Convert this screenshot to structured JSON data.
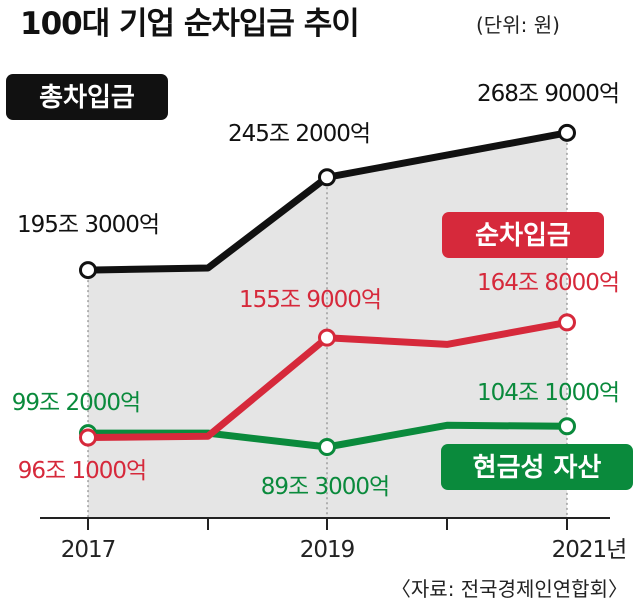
{
  "title": "100대 기업 순차입금 추이",
  "unit": "(단위: 원)",
  "source": "〈자료: 전국경제인연합회〉",
  "chart_data": {
    "type": "line",
    "x": [
      2017,
      2018,
      2019,
      2020,
      2021
    ],
    "x_tick_labels": [
      "2017",
      "",
      "2019",
      "",
      "2021년"
    ],
    "ylim": [
      0,
      300
    ],
    "y_unit": "조 원",
    "grid": false,
    "series": [
      {
        "name": "총차입금",
        "color": "#111111",
        "values": [
          195.3,
          196.5,
          245.2,
          257.0,
          268.9
        ],
        "labels": [
          "195조 3000억",
          "",
          "245조 2000억",
          "",
          "268조 9000억"
        ]
      },
      {
        "name": "순차입금",
        "color": "#d6293b",
        "values": [
          96.1,
          97.0,
          155.9,
          152.0,
          164.8
        ],
        "labels": [
          "96조 1000억",
          "",
          "155조 9000억",
          "",
          "164조 8000억"
        ]
      },
      {
        "name": "현금성 자산",
        "color": "#0a8a3c",
        "values": [
          99.2,
          99.2,
          89.3,
          104.8,
          104.1
        ],
        "labels": [
          "99조 2000억",
          "",
          "89조 3000억",
          "",
          "104조 1000억"
        ]
      }
    ]
  }
}
